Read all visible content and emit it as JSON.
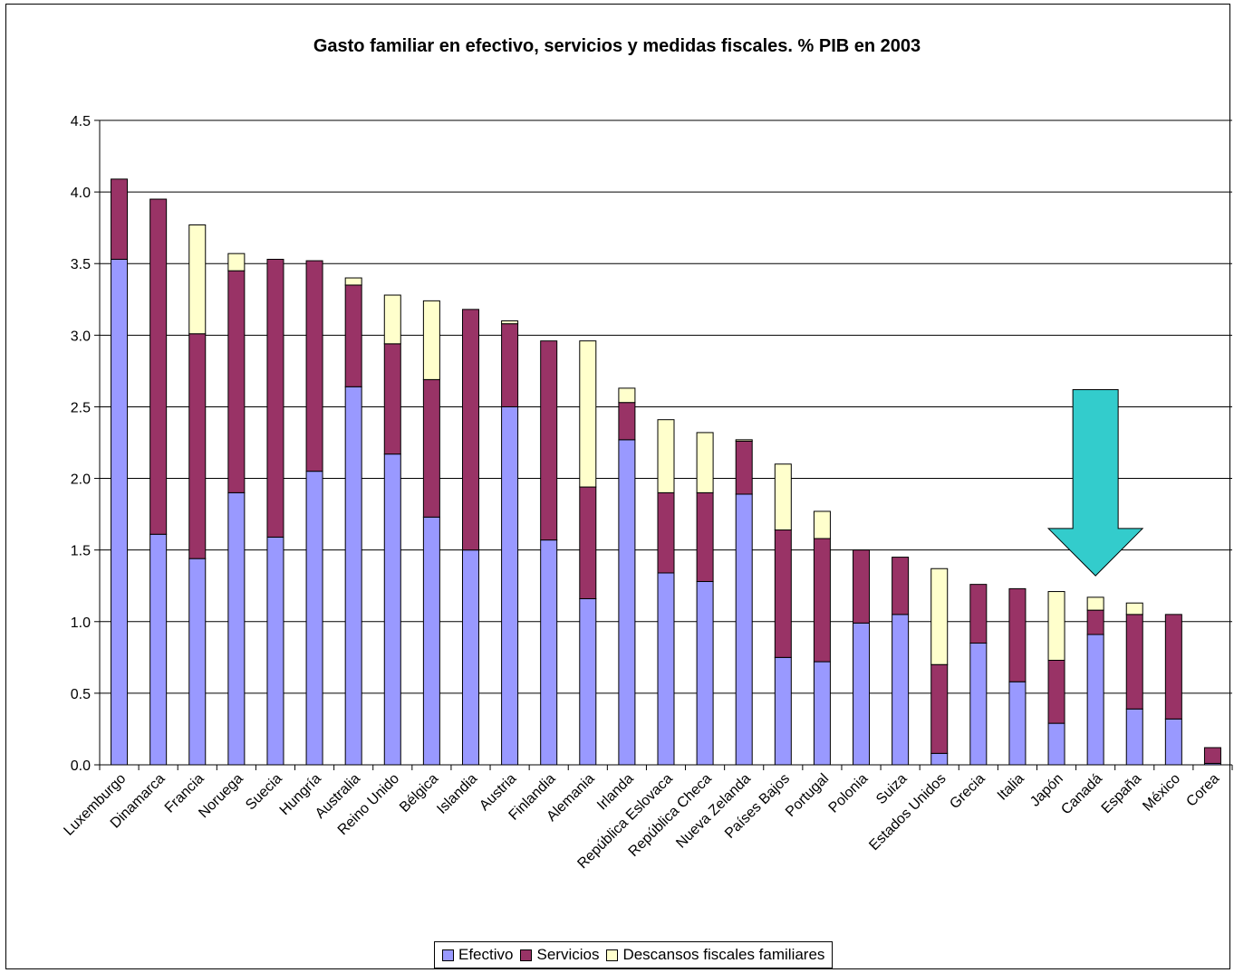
{
  "chart_data": {
    "type": "bar",
    "stacked": true,
    "title": "Gasto familiar en efectivo, servicios y medidas fiscales. % PIB en 2003",
    "xlabel": "",
    "ylabel": "",
    "ylim": [
      0,
      4.5
    ],
    "y_ticks": [
      "0.0",
      "0.5",
      "1.0",
      "1.5",
      "2.0",
      "2.5",
      "3.0",
      "3.5",
      "4.0",
      "4.5"
    ],
    "grid": true,
    "legend_position": "bottom",
    "categories": [
      "Luxemburgo",
      "Dinamarca",
      "Francia",
      "Noruega",
      "Suecia",
      "Hungría",
      "Australia",
      "Reino Unido",
      "Bélgica",
      "Islandia",
      "Austria",
      "Finlandia",
      "Alemania",
      "Irlanda",
      "República Eslovaca",
      "República Checa",
      "Nueva Zelanda",
      "Países Bajos",
      "Portugal",
      "Polonia",
      "Suiza",
      "Estados Unidos",
      "Grecia",
      "Italia",
      "Japón",
      "Canadá",
      "España",
      "México",
      "Corea"
    ],
    "series": [
      {
        "name": "Efectivo",
        "color": "#9999ff",
        "values": [
          3.53,
          1.61,
          1.44,
          1.9,
          1.59,
          2.05,
          2.64,
          2.17,
          1.73,
          1.5,
          2.5,
          1.57,
          1.16,
          2.27,
          1.34,
          1.28,
          1.89,
          0.75,
          0.72,
          0.99,
          1.05,
          0.08,
          0.85,
          0.58,
          0.29,
          0.91,
          0.39,
          0.32,
          0.01
        ]
      },
      {
        "name": "Servicios",
        "color": "#993366",
        "values": [
          0.56,
          2.34,
          1.57,
          1.55,
          1.94,
          1.47,
          0.71,
          0.77,
          0.96,
          1.68,
          0.58,
          1.39,
          0.78,
          0.26,
          0.56,
          0.62,
          0.37,
          0.89,
          0.86,
          0.51,
          0.4,
          0.62,
          0.41,
          0.65,
          0.44,
          0.17,
          0.66,
          0.73,
          0.11
        ]
      },
      {
        "name": "Descansos fiscales familiares",
        "color": "#ffffcc",
        "values": [
          0,
          0,
          0.76,
          0.12,
          0,
          0,
          0.05,
          0.34,
          0.55,
          0,
          0.02,
          0,
          1.02,
          0.1,
          0.51,
          0.42,
          0.01,
          0.46,
          0.19,
          0,
          0,
          0.67,
          0,
          0,
          0.48,
          0.09,
          0.08,
          0,
          0
        ]
      }
    ],
    "annotation": {
      "type": "arrow",
      "fill": "#33cccc",
      "points_to": "Canadá",
      "top_value": 2.62,
      "tip_value": 1.32
    }
  }
}
